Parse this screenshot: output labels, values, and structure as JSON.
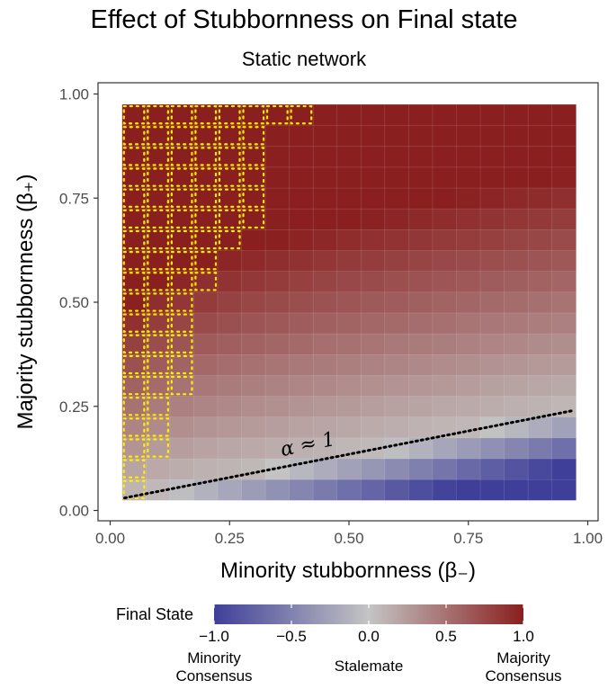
{
  "chart_data": {
    "type": "heatmap",
    "title": "Effect of Stubbornness on Final state",
    "subtitle": "Static network",
    "xlabel": "Minority stubbornness (β₋)",
    "ylabel": "Majority stubbornness (β₊)",
    "xlim": [
      0,
      1
    ],
    "ylim": [
      0,
      1
    ],
    "x_ticks": [
      "0.00",
      "0.25",
      "0.50",
      "0.75",
      "1.00"
    ],
    "y_ticks": [
      "0.00",
      "0.25",
      "0.50",
      "0.75",
      "1.00"
    ],
    "grid": true,
    "cell_centers": [
      0.05,
      0.1,
      0.15,
      0.2,
      0.25,
      0.3,
      0.35,
      0.4,
      0.45,
      0.5,
      0.55,
      0.6,
      0.65,
      0.7,
      0.75,
      0.8,
      0.85,
      0.9,
      0.95
    ],
    "value_model": "final_state = clamp(tanh(2.2*(beta_plus/beta_minus - 4)), -1, 1) shaded by distance from alpha≈1 line",
    "annotation": {
      "text": "α ≈ 1",
      "line": {
        "x": [
          0.03,
          0.97
        ],
        "y": [
          0.03,
          0.24
        ],
        "style": "dotted"
      }
    },
    "highlight_region": {
      "description": "yellow dotted cell borders mark full majority consensus",
      "max_beta_minus_by_row": [
        {
          "beta_plus": 0.05,
          "beta_minus_max": 0.05
        },
        {
          "beta_plus": 0.1,
          "beta_minus_max": 0.05
        },
        {
          "beta_plus": 0.15,
          "beta_minus_max": 0.1
        },
        {
          "beta_plus": 0.2,
          "beta_minus_max": 0.1
        },
        {
          "beta_plus": 0.25,
          "beta_minus_max": 0.1
        },
        {
          "beta_plus": 0.3,
          "beta_minus_max": 0.15
        },
        {
          "beta_plus": 0.35,
          "beta_minus_max": 0.15
        },
        {
          "beta_plus": 0.4,
          "beta_minus_max": 0.15
        },
        {
          "beta_plus": 0.45,
          "beta_minus_max": 0.15
        },
        {
          "beta_plus": 0.5,
          "beta_minus_max": 0.15
        },
        {
          "beta_plus": 0.55,
          "beta_minus_max": 0.2
        },
        {
          "beta_plus": 0.6,
          "beta_minus_max": 0.2
        },
        {
          "beta_plus": 0.65,
          "beta_minus_max": 0.25
        },
        {
          "beta_plus": 0.7,
          "beta_minus_max": 0.3
        },
        {
          "beta_plus": 0.75,
          "beta_minus_max": 0.3
        },
        {
          "beta_plus": 0.8,
          "beta_minus_max": 0.3
        },
        {
          "beta_plus": 0.85,
          "beta_minus_max": 0.3
        },
        {
          "beta_plus": 0.9,
          "beta_minus_max": 0.3
        },
        {
          "beta_plus": 0.95,
          "beta_minus_max": 0.4
        }
      ]
    },
    "legend": {
      "title": "Final State",
      "placement": "bottom",
      "range": [
        -1,
        1
      ],
      "ticks": [
        "−1.0",
        "−0.5",
        "0.0",
        "0.5",
        "1.0"
      ],
      "tick_values": [
        -1,
        -0.5,
        0,
        0.5,
        1
      ],
      "descriptions": [
        {
          "value": -1,
          "text_lines": [
            "Minority",
            "Consensus"
          ]
        },
        {
          "value": 0,
          "text_lines": [
            "Stalemate"
          ]
        },
        {
          "value": 1,
          "text_lines": [
            "Majority",
            "Consensus"
          ]
        }
      ]
    },
    "colors": {
      "low": "#3f3f9a",
      "mid": "#c4c4c4",
      "high": "#8a1f1f",
      "highlight": "#ffee00",
      "panel_border": "#333333"
    }
  }
}
